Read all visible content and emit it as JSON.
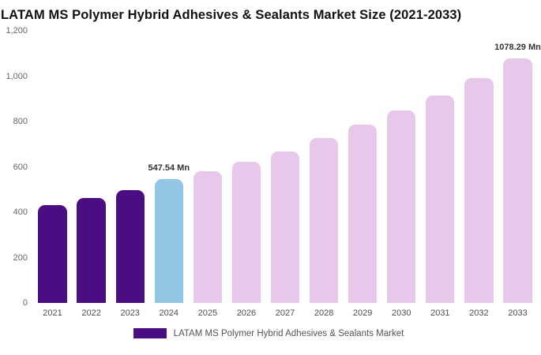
{
  "chart_data": {
    "type": "bar",
    "title": "LATAM MS Polymer Hybrid Adhesives & Sealants Market Size (2021-2033)",
    "categories": [
      "2021",
      "2022",
      "2023",
      "2024",
      "2025",
      "2026",
      "2027",
      "2028",
      "2029",
      "2030",
      "2031",
      "2032",
      "2033"
    ],
    "values": [
      430,
      462,
      498,
      547.54,
      580,
      622,
      668,
      726,
      786,
      850,
      916,
      992,
      1078.29
    ],
    "bar_colors": [
      "#4b0e82",
      "#4b0e82",
      "#4b0e82",
      "#93c6e5",
      "#e7c7ea",
      "#e7c7ea",
      "#e7c7ea",
      "#e7c7ea",
      "#e7c7ea",
      "#e7c7ea",
      "#e7c7ea",
      "#e7c7ea",
      "#e7c7ea"
    ],
    "data_labels": [
      {
        "index": 3,
        "text": "547.54 Mn"
      },
      {
        "index": 12,
        "text": "1078.29 Mn"
      }
    ],
    "xlabel": "",
    "ylabel": "",
    "ylim": [
      0,
      1200
    ],
    "yticks": [
      "1,200",
      "1,000",
      "800",
      "600",
      "400",
      "200",
      "0"
    ],
    "grid": false,
    "legend_position": "bottom"
  },
  "colors": {
    "historical_bar": "#4b0e82",
    "current_bar": "#93c6e5",
    "forecast_bar": "#e7c7ea",
    "title_text": "#111111",
    "axis_text": "#666666",
    "data_label_text": "#333333"
  },
  "legend": {
    "label": "LATAM MS Polymer Hybrid Adhesives & Sealants Market",
    "swatch_color": "#4b0e82"
  }
}
